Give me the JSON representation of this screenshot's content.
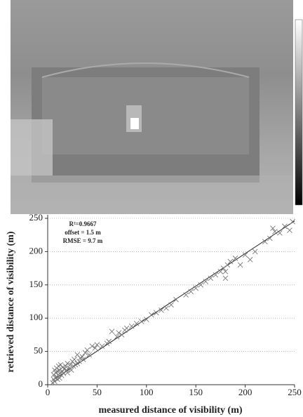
{
  "chart_data": {
    "type": "scatter",
    "xlabel": "measured distance of visibility (m)",
    "ylabel": "retrieved distance of visibility (m)",
    "annotations": [
      "R²=0.9667",
      "offset = 1.5 m",
      "RMSE = 9.7 m"
    ],
    "xlim": [
      0,
      250
    ],
    "ylim": [
      0,
      250
    ],
    "xticks": [
      0,
      50,
      100,
      150,
      200,
      250
    ],
    "yticks": [
      0,
      50,
      100,
      150,
      200,
      250
    ],
    "grid": true,
    "color": "#777777",
    "x": [
      5,
      6,
      6,
      7,
      7,
      8,
      8,
      9,
      9,
      10,
      10,
      11,
      11,
      12,
      12,
      13,
      13,
      14,
      15,
      15,
      16,
      17,
      18,
      19,
      20,
      20,
      22,
      23,
      24,
      25,
      26,
      27,
      28,
      30,
      30,
      32,
      33,
      35,
      36,
      38,
      40,
      42,
      45,
      48,
      50,
      55,
      60,
      62,
      65,
      70,
      72,
      75,
      78,
      80,
      85,
      90,
      95,
      100,
      105,
      110,
      115,
      120,
      125,
      130,
      140,
      145,
      150,
      155,
      160,
      165,
      170,
      175,
      178,
      180,
      180,
      182,
      185,
      190,
      195,
      200,
      205,
      210,
      220,
      225,
      228,
      230,
      235,
      240,
      245,
      248
    ],
    "y": [
      3,
      8,
      15,
      5,
      22,
      10,
      18,
      12,
      25,
      8,
      20,
      15,
      28,
      10,
      22,
      18,
      30,
      14,
      20,
      26,
      17,
      24,
      28,
      22,
      18,
      32,
      25,
      30,
      22,
      35,
      28,
      38,
      30,
      32,
      45,
      35,
      40,
      42,
      38,
      48,
      52,
      45,
      58,
      55,
      60,
      58,
      62,
      65,
      80,
      72,
      78,
      75,
      82,
      85,
      88,
      92,
      95,
      98,
      105,
      108,
      112,
      115,
      120,
      128,
      135,
      140,
      145,
      150,
      155,
      160,
      165,
      170,
      175,
      160,
      170,
      180,
      185,
      190,
      180,
      195,
      188,
      200,
      215,
      220,
      235,
      230,
      228,
      238,
      232,
      245
    ],
    "fit_line": {
      "x": [
        5,
        250
      ],
      "y": [
        6.5,
        246
      ]
    }
  }
}
